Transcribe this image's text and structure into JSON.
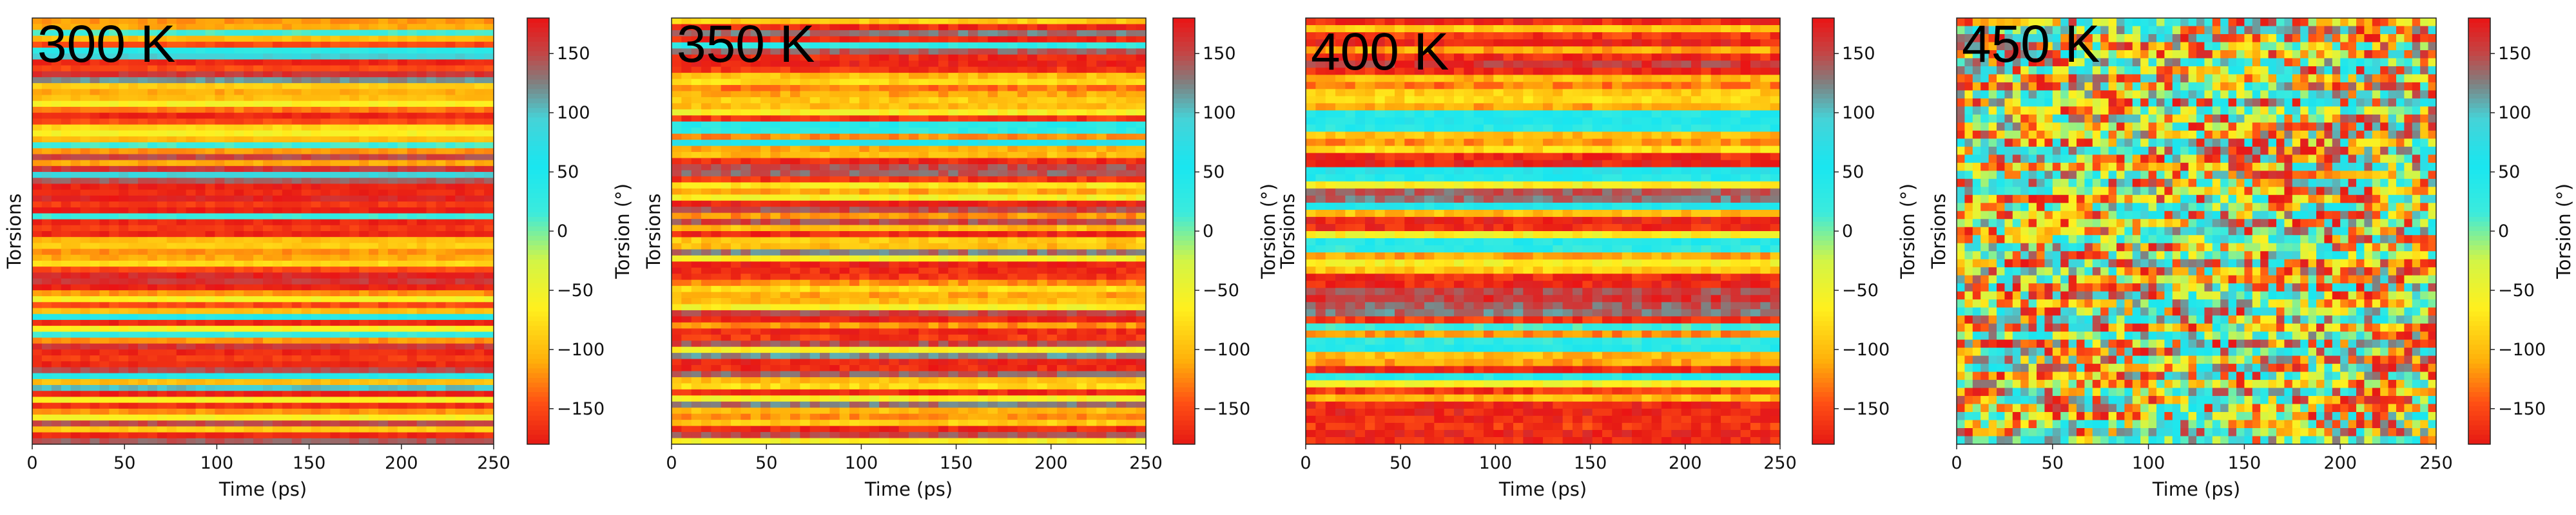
{
  "chart_data": [
    {
      "type": "heatmap",
      "title": "300 K",
      "xlabel": "Time (ps)",
      "ylabel": "Torsions",
      "colorbar_label": "Torsion (°)",
      "xlim": [
        0,
        250
      ],
      "x_ticks": [
        "0",
        "50",
        "100",
        "150",
        "200",
        "250"
      ],
      "colorbar_range": [
        -180,
        180
      ],
      "colorbar_ticks": [
        "150",
        "100",
        "50",
        "0",
        "−50",
        "−100",
        "−150"
      ],
      "rows_mean_torsion": [
        -120,
        -110,
        15,
        -100,
        -150,
        35,
        90,
        -170,
        -150,
        160,
        120,
        -90,
        -110,
        -100,
        -60,
        -130,
        -170,
        -150,
        -80,
        -60,
        -100,
        15,
        -120,
        150,
        -110,
        160,
        90,
        140,
        -175,
        -170,
        170,
        -160,
        -175,
        20,
        -170,
        -160,
        -170,
        -100,
        -90,
        -120,
        -110,
        -80,
        -150,
        170,
        160,
        -175,
        -120,
        -60,
        -150,
        -100,
        40,
        -170,
        -60,
        20,
        -120,
        160,
        -170,
        -160,
        -170,
        150,
        40,
        -100,
        100,
        -175,
        -60,
        -165,
        -120,
        -60,
        150,
        -90,
        -170,
        140
      ]
    },
    {
      "type": "heatmap",
      "title": "350 K",
      "xlabel": "Time (ps)",
      "ylabel": "Torsions",
      "colorbar_label": "Torsion (°)",
      "xlim": [
        0,
        250
      ],
      "x_ticks": [
        "0",
        "50",
        "100",
        "150",
        "200",
        "250"
      ],
      "colorbar_range": [
        -180,
        180
      ],
      "colorbar_ticks": [
        "150",
        "100",
        "50",
        "0",
        "−50",
        "−100",
        "−150"
      ],
      "rows_mean_torsion": [
        -90,
        -170,
        130,
        -170,
        30,
        140,
        -170,
        -175,
        -160,
        -100,
        -80,
        -130,
        -110,
        -90,
        -100,
        -60,
        -160,
        40,
        30,
        -120,
        60,
        -110,
        -100,
        -170,
        150,
        140,
        -160,
        -70,
        -110,
        -60,
        -175,
        150,
        -120,
        150,
        -100,
        -170,
        -90,
        -100,
        130,
        -60,
        -175,
        -170,
        -160,
        -120,
        -80,
        -110,
        -100,
        -60,
        150,
        -175,
        -120,
        -170,
        -160,
        150,
        -60,
        120,
        -175,
        -170,
        140,
        -100,
        -80,
        -170,
        -60,
        130,
        -100,
        -120,
        -90,
        -170,
        150,
        -60
      ]
    },
    {
      "type": "heatmap",
      "title": "400 K",
      "xlabel": "Time (ps)",
      "ylabel": "Torsions",
      "colorbar_label": "Torsion (°)",
      "xlim": [
        0,
        250
      ],
      "x_ticks": [
        "0",
        "50",
        "100",
        "150",
        "200",
        "250"
      ],
      "colorbar_range": [
        -180,
        180
      ],
      "colorbar_ticks": [
        "150",
        "100",
        "50",
        "0",
        "−50",
        "−100",
        "−150"
      ],
      "rows_mean_torsion": [
        -170,
        -90,
        -160,
        -175,
        -110,
        -170,
        160,
        -170,
        -100,
        -130,
        -90,
        -80,
        -110,
        40,
        50,
        35,
        -100,
        -120,
        -80,
        -170,
        -175,
        60,
        40,
        -60,
        140,
        130,
        50,
        -100,
        -175,
        -170,
        -60,
        40,
        30,
        -110,
        -60,
        -90,
        -170,
        -175,
        150,
        160,
        140,
        130,
        -160,
        20,
        -120,
        30,
        40,
        -100,
        -110,
        -170,
        40,
        -60,
        -160,
        -100,
        -170,
        -175,
        -170,
        -160,
        -175,
        -170
      ]
    },
    {
      "type": "heatmap",
      "title": "450 K",
      "xlabel": "Time (ps)",
      "ylabel": "Torsions",
      "colorbar_label": "Torsion (°)",
      "xlim": [
        0,
        250
      ],
      "x_ticks": [
        "0",
        "50",
        "100",
        "150",
        "200",
        "250"
      ],
      "colorbar_range": [
        -180,
        180
      ],
      "colorbar_ticks": [
        "150",
        "100",
        "50",
        "0",
        "−50",
        "−100",
        "−150"
      ],
      "rows_mean_torsion": [
        -100,
        40,
        150,
        -170,
        -100,
        40,
        120,
        -60,
        -170,
        30,
        -120,
        140,
        50,
        -90,
        -170,
        20,
        -60,
        150,
        -110,
        40,
        -170,
        30,
        130,
        -80,
        -100,
        40,
        -170,
        150,
        -60,
        30,
        -120,
        -170,
        40,
        140,
        -90,
        -60,
        30,
        -170,
        -100,
        40,
        150,
        -60,
        -170,
        30,
        -110,
        40,
        -170,
        120,
        -80,
        30,
        -60,
        -170,
        40
      ]
    }
  ]
}
